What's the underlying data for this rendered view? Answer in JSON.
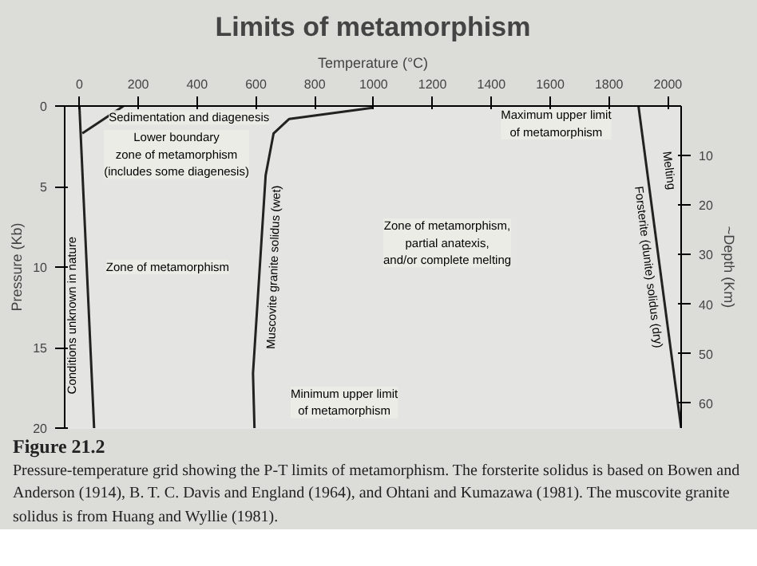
{
  "chart_data": {
    "type": "line",
    "title": "Limits of metamorphism",
    "xlabel": "Temperature (°C)",
    "ylabel": "Pressure (Kb)",
    "y2label": "~Depth (Km)",
    "xlim": [
      -50,
      2045
    ],
    "xticks": [
      0,
      200,
      400,
      600,
      800,
      1000,
      1200,
      1400,
      1600,
      1800,
      2000
    ],
    "ylim": [
      20,
      0
    ],
    "yticks": [
      0,
      5,
      10,
      15,
      20
    ],
    "y2lim": [
      65,
      0
    ],
    "y2ticks": [
      10,
      20,
      30,
      40,
      50,
      60
    ],
    "marker": "none",
    "line_style": "solid",
    "series": [
      {
        "color": "#222222",
        "x": [
          0,
          50
        ],
        "values": [
          0,
          20
        ]
      },
      {
        "color": "#222222",
        "x": [
          150,
          10
        ],
        "values": [
          0,
          1.7
        ]
      },
      {
        "color": "#222222",
        "x": [
          595,
          590,
          633,
          660,
          713,
          1000
        ],
        "values": [
          20,
          16.6,
          4.3,
          1.7,
          0.8,
          0.1
        ]
      },
      {
        "color": "#222222",
        "x": [
          1900,
          2045
        ],
        "values": [
          0,
          20
        ]
      }
    ],
    "annotations": [
      "Sedimentation and diagenesis",
      "Lower boundary\nzone of metamorphism\n(includes some diagenesis)",
      "Conditions unknown in nature",
      "Zone of metamorphism",
      "Muscovite granite solidus (wet)",
      "Zone of metamorphism,\npartial anatexis,\nand/or complete melting",
      "Minimum upper limit\nof metamorphism",
      "Maximum upper limit\nof metamorphism",
      "Forsterite (dunite) solidus (dry)",
      "Melting",
      "Figure 21.2",
      "Pressure-temperature grid showing the P-T limits of metamorphism. The forsterite solidus is based on Bowen and Anderson (1914), B. T. C. Davis and England (1964), and Ohtani and Kumazawa (1981). The muscovite granite solidus is from Huang and Wyllie (1981)."
    ]
  }
}
